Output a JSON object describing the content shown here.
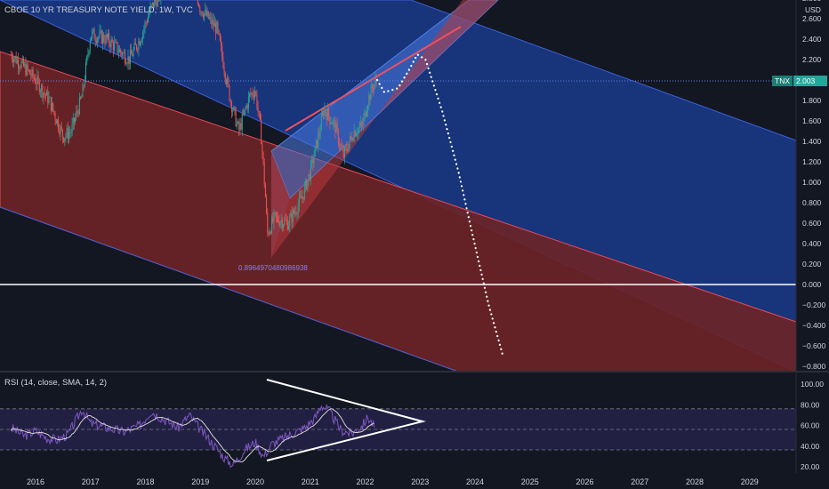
{
  "chart_data": [
    {
      "type": "candlestick",
      "title": "CBOE 10 YR TREASURY NOTE YIELD, 1W, TVC",
      "currency": "USD",
      "symbol": "TNX",
      "last_value": "2.003",
      "y_ticks": [
        "2.800",
        "2.600",
        "2.400",
        "2.200",
        "2.000",
        "1.800",
        "1.600",
        "1.400",
        "1.200",
        "1.000",
        "0.800",
        "0.600",
        "0.400",
        "0.200",
        "0.000",
        "−0.200",
        "−0.400",
        "−0.600",
        "−0.800"
      ],
      "x_ticks": [
        "2016",
        "2017",
        "2018",
        "2019",
        "2020",
        "2021",
        "2022",
        "2023",
        "2024",
        "2025",
        "2026",
        "2027",
        "2028",
        "2029"
      ],
      "ylim": [
        -0.8,
        2.8
      ],
      "close_path": [
        [
          2015.55,
          2.25
        ],
        [
          2015.75,
          2.15
        ],
        [
          2016.0,
          2.0
        ],
        [
          2016.25,
          1.8
        ],
        [
          2016.5,
          1.45
        ],
        [
          2016.65,
          1.5
        ],
        [
          2016.85,
          1.85
        ],
        [
          2017.0,
          2.45
        ],
        [
          2017.3,
          2.4
        ],
        [
          2017.7,
          2.2
        ],
        [
          2017.9,
          2.4
        ],
        [
          2018.1,
          2.7
        ],
        [
          2018.4,
          2.95
        ],
        [
          2018.8,
          3.1
        ],
        [
          2019.0,
          2.7
        ],
        [
          2019.3,
          2.5
        ],
        [
          2019.55,
          1.8
        ],
        [
          2019.7,
          1.5
        ],
        [
          2019.9,
          1.85
        ],
        [
          2020.0,
          1.9
        ],
        [
          2020.1,
          1.5
        ],
        [
          2020.18,
          0.9
        ],
        [
          2020.22,
          0.5
        ],
        [
          2020.35,
          0.65
        ],
        [
          2020.6,
          0.6
        ],
        [
          2020.85,
          0.85
        ],
        [
          2021.0,
          1.1
        ],
        [
          2021.15,
          1.45
        ],
        [
          2021.25,
          1.72
        ],
        [
          2021.45,
          1.55
        ],
        [
          2021.6,
          1.25
        ],
        [
          2021.8,
          1.5
        ],
        [
          2021.95,
          1.55
        ],
        [
          2022.05,
          1.8
        ],
        [
          2022.15,
          1.95
        ],
        [
          2022.22,
          2.0
        ]
      ],
      "projection_path": [
        [
          2022.22,
          2.0
        ],
        [
          2022.35,
          1.88
        ],
        [
          2022.6,
          1.92
        ],
        [
          2022.8,
          2.1
        ],
        [
          2022.95,
          2.25
        ],
        [
          2023.1,
          2.2
        ],
        [
          2023.4,
          1.7
        ],
        [
          2023.7,
          1.1
        ],
        [
          2023.95,
          0.5
        ],
        [
          2024.25,
          -0.2
        ],
        [
          2024.5,
          -0.68
        ]
      ],
      "annotation": "0.8964970480986938",
      "zero_line": 0.0
    },
    {
      "type": "line",
      "title": "RSI (14, close, SMA, 14, 2)",
      "y_ticks": [
        "100.00",
        "80.00",
        "60.00",
        "40.00",
        "20.00"
      ],
      "ylim": [
        14,
        105
      ],
      "band_levels": [
        70,
        50,
        30
      ],
      "rsi_path": [
        [
          2015.55,
          58
        ],
        [
          2015.8,
          50
        ],
        [
          2016.0,
          55
        ],
        [
          2016.2,
          48
        ],
        [
          2016.4,
          46
        ],
        [
          2016.6,
          52
        ],
        [
          2016.85,
          76
        ],
        [
          2017.0,
          62
        ],
        [
          2017.3,
          58
        ],
        [
          2017.6,
          54
        ],
        [
          2017.9,
          60
        ],
        [
          2018.1,
          74
        ],
        [
          2018.4,
          64
        ],
        [
          2018.6,
          58
        ],
        [
          2018.8,
          70
        ],
        [
          2019.0,
          56
        ],
        [
          2019.2,
          44
        ],
        [
          2019.45,
          28
        ],
        [
          2019.6,
          22
        ],
        [
          2019.8,
          36
        ],
        [
          2020.0,
          44
        ],
        [
          2020.15,
          30
        ],
        [
          2020.3,
          42
        ],
        [
          2020.6,
          50
        ],
        [
          2020.9,
          58
        ],
        [
          2021.1,
          68
        ],
        [
          2021.2,
          80
        ],
        [
          2021.35,
          74
        ],
        [
          2021.55,
          56
        ],
        [
          2021.75,
          52
        ],
        [
          2021.95,
          60
        ],
        [
          2022.05,
          68
        ],
        [
          2022.18,
          58
        ]
      ]
    }
  ]
}
